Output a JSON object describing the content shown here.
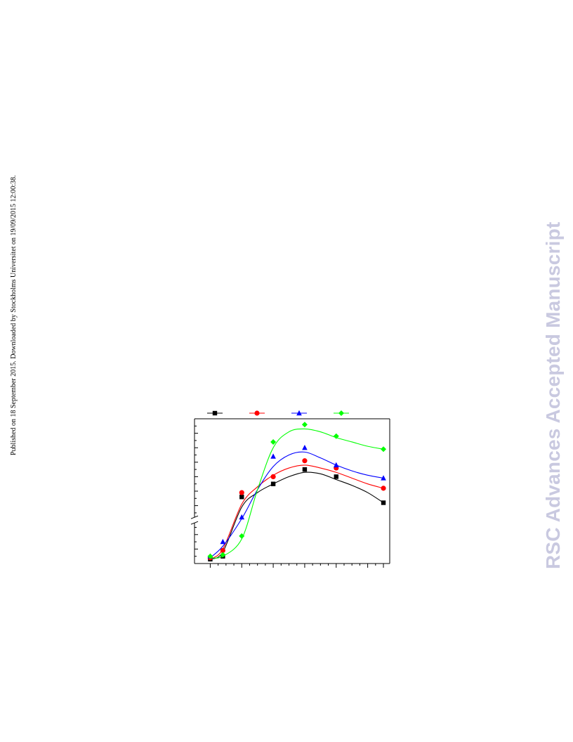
{
  "side_note": "Published on 18 September 2015. Downloaded by Stockholms Universitet on 19/09/2015 12:00:38.",
  "watermark": {
    "text": "RSC Advances Accepted Manuscript",
    "color": "#c9c9e0"
  },
  "chart_data": {
    "type": "scatter",
    "title": "",
    "xlabel": "",
    "ylabel": "",
    "xlim": [
      0,
      6.2
    ],
    "ylim": [
      0,
      100
    ],
    "x_ticks_major": [
      0.5,
      1.5,
      2.5,
      3.5,
      4.5,
      5.5,
      6
    ],
    "y_axis_break": 30,
    "grid": false,
    "legend": "top",
    "series": [
      {
        "marker": "square",
        "color": "#000000",
        "points": [
          [
            0.5,
            3
          ],
          [
            0.9,
            5
          ],
          [
            1.5,
            46
          ],
          [
            2.5,
            55
          ],
          [
            3.5,
            65
          ],
          [
            4.5,
            60
          ],
          [
            6,
            42
          ]
        ],
        "fit": [
          [
            0.5,
            3
          ],
          [
            0.9,
            8
          ],
          [
            1.5,
            39
          ],
          [
            2.0,
            49
          ],
          [
            2.5,
            55
          ],
          [
            3.0,
            60
          ],
          [
            3.5,
            63
          ],
          [
            4.0,
            62
          ],
          [
            4.5,
            58
          ],
          [
            5.0,
            54
          ],
          [
            5.5,
            49
          ],
          [
            6,
            42
          ]
        ]
      },
      {
        "marker": "circle",
        "color": "#ff0000",
        "points": [
          [
            0.5,
            4
          ],
          [
            0.9,
            9
          ],
          [
            1.5,
            49
          ],
          [
            2.5,
            60
          ],
          [
            3.5,
            71
          ],
          [
            4.5,
            66
          ],
          [
            6,
            52
          ]
        ],
        "fit": [
          [
            0.5,
            3
          ],
          [
            0.9,
            10
          ],
          [
            1.5,
            41
          ],
          [
            2.0,
            53
          ],
          [
            2.5,
            61
          ],
          [
            3.0,
            66
          ],
          [
            3.5,
            68
          ],
          [
            4.0,
            66
          ],
          [
            4.5,
            63
          ],
          [
            5.0,
            59
          ],
          [
            5.5,
            55
          ],
          [
            6,
            52
          ]
        ]
      },
      {
        "marker": "triangle",
        "color": "#0000ff",
        "points": [
          [
            0.5,
            5
          ],
          [
            0.9,
            15
          ],
          [
            1.5,
            32
          ],
          [
            2.5,
            74
          ],
          [
            3.5,
            80
          ],
          [
            4.5,
            68
          ],
          [
            6,
            59
          ]
        ],
        "fit": [
          [
            0.5,
            4
          ],
          [
            0.9,
            12
          ],
          [
            1.5,
            31
          ],
          [
            2.0,
            51
          ],
          [
            2.5,
            67
          ],
          [
            3.0,
            75
          ],
          [
            3.5,
            77
          ],
          [
            4.0,
            73
          ],
          [
            4.5,
            68
          ],
          [
            5.0,
            64
          ],
          [
            5.5,
            61
          ],
          [
            6,
            59
          ]
        ]
      },
      {
        "marker": "diamond",
        "color": "#00ff00",
        "points": [
          [
            0.5,
            5
          ],
          [
            0.9,
            6
          ],
          [
            1.5,
            19
          ],
          [
            2.5,
            84
          ],
          [
            3.5,
            96
          ],
          [
            4.5,
            88
          ],
          [
            6,
            79
          ]
        ],
        "fit": [
          [
            0.5,
            4
          ],
          [
            0.9,
            5
          ],
          [
            1.5,
            17
          ],
          [
            2.0,
            51
          ],
          [
            2.5,
            80
          ],
          [
            3.0,
            91
          ],
          [
            3.5,
            93
          ],
          [
            4.0,
            91
          ],
          [
            4.5,
            87
          ],
          [
            5.0,
            84
          ],
          [
            5.5,
            81
          ],
          [
            6,
            79
          ]
        ]
      }
    ]
  }
}
